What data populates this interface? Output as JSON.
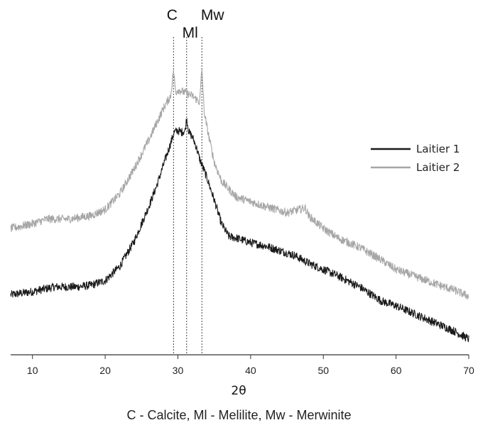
{
  "chart_data": {
    "type": "line",
    "title": "",
    "xlabel": "2θ",
    "ylabel": "",
    "xlim": [
      7,
      70
    ],
    "ylim": [
      0,
      100
    ],
    "x_ticks": [
      10,
      20,
      30,
      40,
      50,
      60,
      70
    ],
    "legend_position": "right",
    "caption": "C - Calcite, Ml - Melilite, Mw - Merwinite",
    "reference_lines": [
      {
        "label": "C",
        "x": 29.4
      },
      {
        "label": "Ml",
        "x": 31.2
      },
      {
        "label": "Mw",
        "x": 33.3
      }
    ],
    "series": [
      {
        "name": "Laitier 1",
        "color": "#1a1a1a",
        "x": [
          7,
          10,
          13,
          16,
          18,
          20,
          22,
          24,
          26,
          27,
          28,
          29,
          29.5,
          30,
          30.5,
          31,
          31.2,
          31.5,
          32,
          32.5,
          33,
          33.5,
          34,
          35,
          36,
          37,
          38,
          40,
          42,
          44,
          46,
          48,
          50,
          52,
          55,
          58,
          60,
          62,
          65,
          68,
          70
        ],
        "y": [
          19,
          20,
          21.5,
          21.5,
          22,
          23.5,
          28,
          36,
          47,
          53,
          60,
          67,
          70.5,
          71,
          70.5,
          71,
          75,
          70.5,
          69,
          66,
          62,
          59,
          56,
          49,
          41.5,
          37.5,
          37,
          35.5,
          34.5,
          33,
          31.5,
          29,
          27,
          25,
          21.5,
          17,
          15.5,
          13.5,
          10.5,
          7.5,
          5
        ]
      },
      {
        "name": "Laitier 2",
        "color": "#a6a6a6",
        "x": [
          7,
          10,
          12,
          15,
          18,
          20,
          22,
          24,
          26,
          27,
          28,
          29,
          29.4,
          29.7,
          30,
          31,
          32,
          33,
          33.3,
          33.6,
          34,
          35,
          36,
          38,
          40,
          42,
          45,
          47.5,
          48,
          50,
          52,
          55,
          58,
          60,
          63,
          66,
          68,
          70
        ],
        "y": [
          40,
          41.5,
          43,
          43,
          44,
          46,
          51,
          59,
          68,
          73,
          78,
          82,
          90,
          83,
          84,
          83,
          82,
          80,
          91,
          77,
          72,
          61,
          55,
          50,
          48.5,
          47,
          45,
          46.5,
          44,
          40,
          37,
          34,
          30,
          27,
          24.5,
          22,
          20.5,
          18.5
        ]
      }
    ]
  }
}
